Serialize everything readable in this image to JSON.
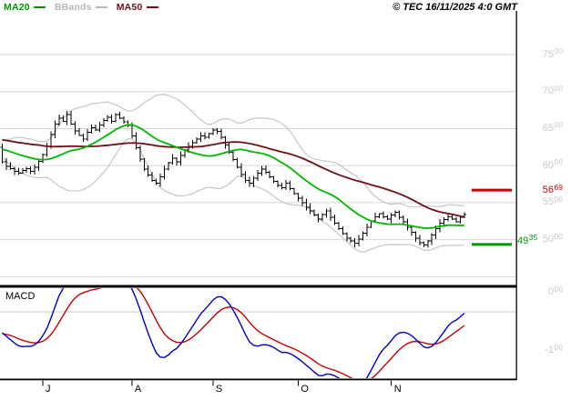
{
  "meta": {
    "copyright": "© TEC 16/11/2025 4:0 GMT"
  },
  "legend": [
    {
      "label": "MA20",
      "color": "#009900"
    },
    {
      "label": "BBands",
      "color": "#b8b8b8"
    },
    {
      "label": "MA50",
      "color": "#6e1014"
    }
  ],
  "chart_data": {
    "type": "candlestick",
    "title": "",
    "x_axis": {
      "tick_labels": [
        "J",
        "A",
        "S",
        "O",
        "N"
      ],
      "tick_bar_indices": [
        10,
        32,
        52,
        73,
        96
      ]
    },
    "price_axis": {
      "side": "right",
      "ticks": [
        7500,
        7000,
        6500,
        6000,
        5500,
        5000
      ],
      "gridlines": [
        7500,
        7000,
        6500,
        6000,
        5500,
        5000,
        4500
      ],
      "visible_range_approx": [
        4400,
        8200
      ]
    },
    "series": {
      "close": [
        6050,
        5990,
        5960,
        5920,
        5900,
        5935,
        5960,
        5925,
        5980,
        6060,
        6150,
        6260,
        6420,
        6560,
        6640,
        6600,
        6690,
        6560,
        6470,
        6410,
        6360,
        6450,
        6510,
        6480,
        6550,
        6610,
        6650,
        6600,
        6690,
        6640,
        6590,
        6540,
        6400,
        6240,
        6090,
        5950,
        5870,
        5800,
        5760,
        5850,
        5950,
        6040,
        6100,
        6050,
        6140,
        6210,
        6260,
        6310,
        6360,
        6400,
        6380,
        6430,
        6480,
        6460,
        6380,
        6280,
        6180,
        6080,
        5980,
        5880,
        5800,
        5760,
        5830,
        5900,
        5950,
        5910,
        5850,
        5790,
        5730,
        5700,
        5760,
        5690,
        5620,
        5560,
        5500,
        5440,
        5390,
        5330,
        5280,
        5340,
        5390,
        5300,
        5220,
        5150,
        5080,
        5020,
        4980,
        4950,
        5010,
        5090,
        5170,
        5250,
        5310,
        5350,
        5310,
        5280,
        5330,
        5370,
        5300,
        5240,
        5170,
        5100,
        5020,
        4960,
        4930,
        4980,
        5060,
        5150,
        5220,
        5270,
        5310,
        5280,
        5240,
        5300,
        5340
      ],
      "prehistory_close": [
        6650,
        6620,
        6600,
        6580,
        6600,
        6560,
        6520,
        6540,
        6500,
        6480,
        6460,
        6430,
        6450,
        6410,
        6390,
        6360,
        6380,
        6350,
        6320,
        6340,
        6310,
        6290,
        6310,
        6280,
        6260,
        6280,
        6250,
        6230,
        6250,
        6220,
        6200,
        6220,
        6190,
        6170,
        6190,
        6160,
        6180,
        6200,
        6230,
        6250
      ]
    },
    "overlays": [
      {
        "name": "MA20",
        "type": "sma",
        "period": 20,
        "color": "#00b800"
      },
      {
        "name": "MA50",
        "type": "sma",
        "period": 50,
        "color": "#6e1014"
      },
      {
        "name": "BBands",
        "type": "bollinger",
        "period": 20,
        "stddev": 2,
        "color": "#c6c6c6"
      }
    ],
    "levels": [
      {
        "value": 5669,
        "label": "5669",
        "color": "#cc0000",
        "role": "resistance"
      },
      {
        "value": 4935,
        "label": "4935",
        "color": "#009900",
        "role": "support"
      }
    ],
    "macd_panel": {
      "label": "MACD",
      "params": {
        "fast": 12,
        "slow": 26,
        "signal": 9
      },
      "colors": {
        "macd": "#0000c8",
        "signal": "#c80000"
      },
      "yticks": [
        {
          "value": 0,
          "text": "000"
        },
        {
          "value": -100,
          "text": "-100"
        }
      ]
    }
  }
}
